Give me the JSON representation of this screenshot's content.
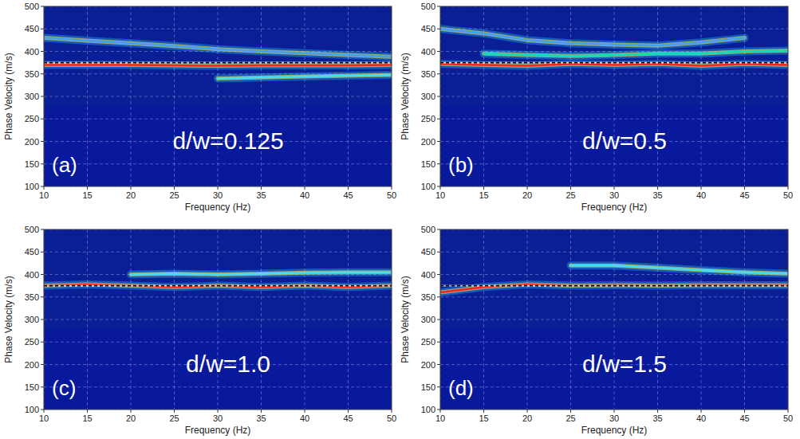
{
  "chart_data": [
    {
      "type": "line",
      "title": "d/w=0.125",
      "panel_label": "(a)",
      "x_label": "Frequency (Hz)",
      "y_label": "Phase Velocity (m/s)",
      "x": [
        10,
        15,
        20,
        25,
        30,
        35,
        40,
        45,
        50
      ],
      "xlim": [
        10,
        50
      ],
      "ylim": [
        100,
        500
      ],
      "xticks": [
        10,
        15,
        20,
        25,
        30,
        35,
        40,
        45,
        50
      ],
      "yticks": [
        100,
        150,
        200,
        250,
        300,
        350,
        400,
        450,
        500
      ],
      "grid": true,
      "series": [
        {
          "color": "#3fa0ff",
          "line_style": "solid",
          "values": [
            430,
            424,
            418,
            412,
            405,
            400,
            396,
            392,
            388
          ]
        },
        {
          "color": "#40e0ff",
          "line_style": "solid",
          "values": [
            null,
            null,
            null,
            null,
            340,
            342,
            344,
            346,
            348
          ]
        },
        {
          "color": "#ff2020",
          "line_style": "solid",
          "values": [
            370,
            370,
            370,
            369,
            368,
            369,
            369,
            369,
            370
          ]
        },
        {
          "color": "#000000",
          "line_style": "dashed",
          "values": [
            375,
            375,
            375,
            375,
            375,
            375,
            375,
            375,
            375
          ]
        }
      ]
    },
    {
      "type": "line",
      "title": "d/w=0.5",
      "panel_label": "(b)",
      "x_label": "Frequency (Hz)",
      "y_label": "Phase Velocity (m/s)",
      "x": [
        10,
        15,
        20,
        25,
        30,
        35,
        40,
        45,
        50
      ],
      "xlim": [
        10,
        50
      ],
      "ylim": [
        100,
        500
      ],
      "xticks": [
        10,
        15,
        20,
        25,
        30,
        35,
        40,
        45,
        50
      ],
      "yticks": [
        100,
        150,
        200,
        250,
        300,
        350,
        400,
        450,
        500
      ],
      "grid": true,
      "series": [
        {
          "color": "#3fa0ff",
          "line_style": "solid",
          "values": [
            450,
            440,
            425,
            418,
            415,
            413,
            420,
            430,
            null
          ]
        },
        {
          "color": "#00e0c0",
          "line_style": "solid",
          "values": [
            null,
            395,
            392,
            390,
            392,
            395,
            395,
            400,
            402
          ]
        },
        {
          "color": "#ff2020",
          "line_style": "solid",
          "values": [
            372,
            370,
            368,
            372,
            370,
            372,
            368,
            372,
            370
          ]
        },
        {
          "color": "#000000",
          "line_style": "dashed",
          "values": [
            375,
            375,
            375,
            375,
            375,
            375,
            375,
            375,
            375
          ]
        }
      ]
    },
    {
      "type": "line",
      "title": "d/w=1.0",
      "panel_label": "(c)",
      "x_label": "Frequency (Hz)",
      "y_label": "Phase Velocity (m/s)",
      "x": [
        10,
        15,
        20,
        25,
        30,
        35,
        40,
        45,
        50
      ],
      "xlim": [
        10,
        50
      ],
      "ylim": [
        100,
        500
      ],
      "xticks": [
        10,
        15,
        20,
        25,
        30,
        35,
        40,
        45,
        50
      ],
      "yticks": [
        100,
        150,
        200,
        250,
        300,
        350,
        400,
        450,
        500
      ],
      "grid": true,
      "series": [
        {
          "color": "#40e0ff",
          "line_style": "solid",
          "values": [
            null,
            null,
            400,
            402,
            400,
            402,
            404,
            405,
            405
          ]
        },
        {
          "color": "#ff2020",
          "line_style": "solid",
          "values": [
            375,
            378,
            375,
            372,
            375,
            372,
            375,
            372,
            375
          ]
        },
        {
          "color": "#000000",
          "line_style": "dashed",
          "values": [
            375,
            375,
            375,
            375,
            375,
            375,
            375,
            375,
            375
          ]
        }
      ]
    },
    {
      "type": "line",
      "title": "d/w=1.5",
      "panel_label": "(d)",
      "x_label": "Frequency (Hz)",
      "y_label": "Phase Velocity (m/s)",
      "x": [
        10,
        15,
        20,
        25,
        30,
        35,
        40,
        45,
        50
      ],
      "xlim": [
        10,
        50
      ],
      "ylim": [
        100,
        500
      ],
      "xticks": [
        10,
        15,
        20,
        25,
        30,
        35,
        40,
        45,
        50
      ],
      "yticks": [
        100,
        150,
        200,
        250,
        300,
        350,
        400,
        450,
        500
      ],
      "grid": true,
      "series": [
        {
          "color": "#40e0ff",
          "line_style": "solid",
          "values": [
            null,
            null,
            null,
            420,
            420,
            415,
            410,
            405,
            402
          ]
        },
        {
          "color": "#ff2020",
          "line_style": "solid",
          "values": [
            360,
            372,
            378,
            375,
            376,
            375,
            376,
            376,
            376
          ]
        },
        {
          "color": "#000000",
          "line_style": "dashed",
          "values": [
            375,
            375,
            375,
            375,
            375,
            375,
            375,
            375,
            375
          ]
        }
      ]
    }
  ]
}
